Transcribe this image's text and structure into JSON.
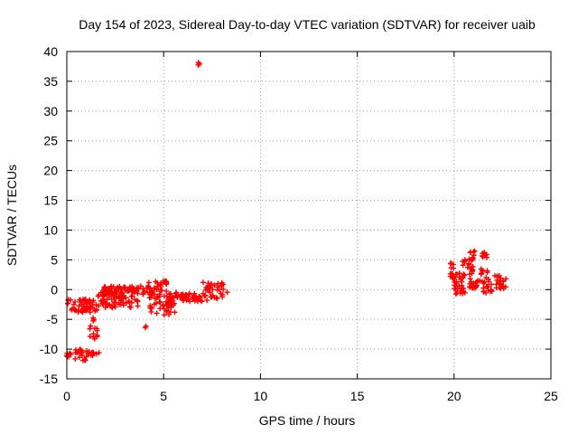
{
  "chart_data": {
    "type": "scatter",
    "title": "Day 154 of 2023, Sidereal Day-to-day VTEC variation (SDTVAR) for receiver uaib",
    "xlabel": "GPS time / hours",
    "ylabel": "SDTVAR / TECUs",
    "xlim": [
      0,
      25
    ],
    "ylim": [
      -15,
      40
    ],
    "xticks": [
      0,
      5,
      10,
      15,
      20,
      25
    ],
    "yticks": [
      -15,
      -10,
      -5,
      0,
      5,
      10,
      15,
      20,
      25,
      30,
      35,
      40
    ],
    "grid": true,
    "marker": "+",
    "color": "#ff0000",
    "clusters": [
      {
        "x0": 0.0,
        "x1": 0.25,
        "y0": -11.3,
        "y1": -10.6,
        "n": 8
      },
      {
        "x0": 0.35,
        "x1": 1.1,
        "y0": -12.0,
        "y1": -10.0,
        "n": 22
      },
      {
        "x0": 1.1,
        "x1": 1.7,
        "y0": -11.3,
        "y1": -10.4,
        "n": 12
      },
      {
        "x0": 1.1,
        "x1": 1.6,
        "y0": -8.3,
        "y1": -4.5,
        "n": 14
      },
      {
        "x0": 0.0,
        "x1": 1.6,
        "y0": -3.8,
        "y1": -1.4,
        "n": 60
      },
      {
        "x0": 1.6,
        "x1": 2.6,
        "y0": -3.2,
        "y1": -0.3,
        "n": 40
      },
      {
        "x0": 1.9,
        "x1": 4.0,
        "y0": -0.8,
        "y1": 0.6,
        "n": 70
      },
      {
        "x0": 2.5,
        "x1": 3.8,
        "y0": -3.0,
        "y1": -1.0,
        "n": 30
      },
      {
        "x0": 4.0,
        "x1": 5.2,
        "y0": -1.5,
        "y1": 1.5,
        "n": 45
      },
      {
        "x0": 4.3,
        "x1": 5.6,
        "y0": -4.3,
        "y1": -2.0,
        "n": 35
      },
      {
        "x0": 5.2,
        "x1": 7.0,
        "y0": -2.0,
        "y1": -0.5,
        "n": 55
      },
      {
        "x0": 7.0,
        "x1": 8.3,
        "y0": -1.8,
        "y1": 1.4,
        "n": 40
      },
      {
        "x0": 4.05,
        "x1": 4.15,
        "y0": -6.5,
        "y1": -6.1,
        "n": 2
      },
      {
        "x0": 6.75,
        "x1": 6.9,
        "y0": 37.7,
        "y1": 38.2,
        "n": 3
      },
      {
        "x0": 19.8,
        "x1": 20.0,
        "y0": 1.0,
        "y1": 4.5,
        "n": 14
      },
      {
        "x0": 20.0,
        "x1": 20.6,
        "y0": -0.8,
        "y1": 3.0,
        "n": 30
      },
      {
        "x0": 20.4,
        "x1": 21.0,
        "y0": 2.5,
        "y1": 5.2,
        "n": 20
      },
      {
        "x0": 20.8,
        "x1": 21.1,
        "y0": 5.0,
        "y1": 6.5,
        "n": 8
      },
      {
        "x0": 20.7,
        "x1": 21.3,
        "y0": -0.3,
        "y1": 2.0,
        "n": 16
      },
      {
        "x0": 21.4,
        "x1": 21.7,
        "y0": 5.4,
        "y1": 6.4,
        "n": 8
      },
      {
        "x0": 21.3,
        "x1": 21.8,
        "y0": 1.0,
        "y1": 3.5,
        "n": 14
      },
      {
        "x0": 21.5,
        "x1": 22.0,
        "y0": -0.6,
        "y1": 1.0,
        "n": 12
      },
      {
        "x0": 22.1,
        "x1": 22.7,
        "y0": 0.0,
        "y1": 2.5,
        "n": 22
      }
    ]
  }
}
